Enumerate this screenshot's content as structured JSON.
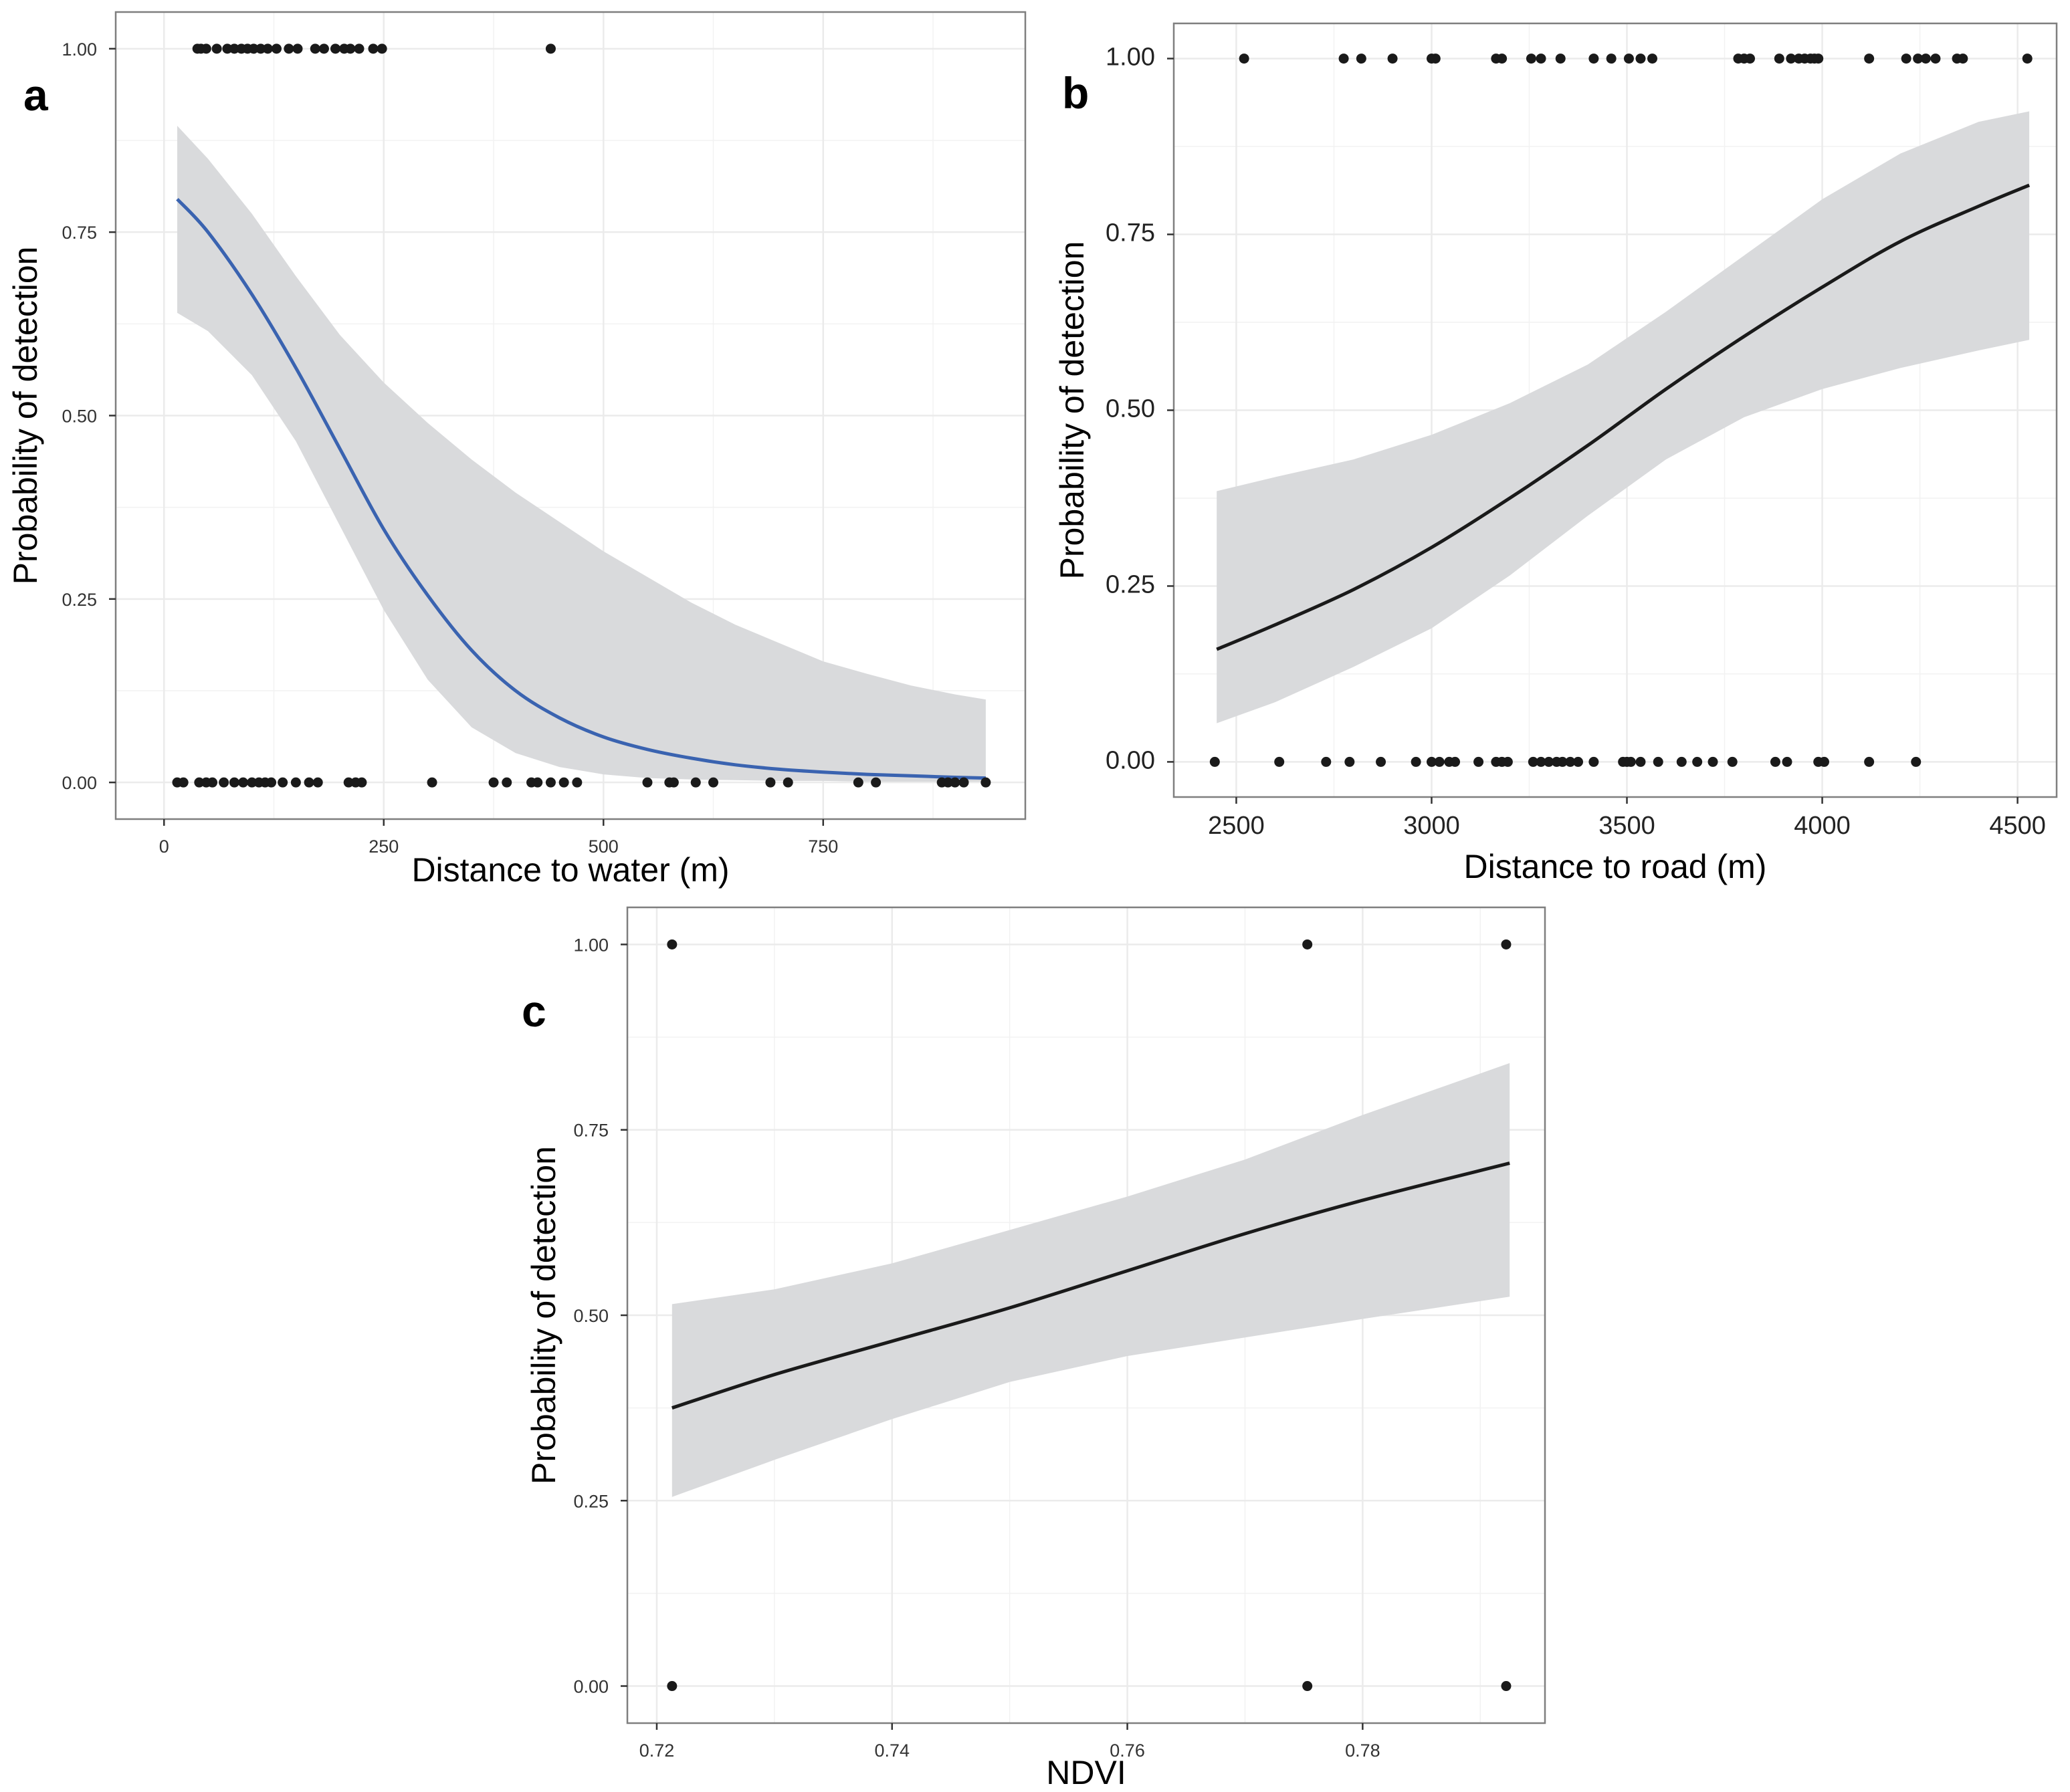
{
  "figure": {
    "colors": {
      "ribbon": "#d9dadc",
      "line_a": "#3a63b0",
      "line_bc": "#1a1a1a",
      "point": "#1a1a1a",
      "grid": "#ebebeb",
      "border": "#7f7f7f"
    }
  },
  "chart_data": [
    {
      "panel_letter": "a",
      "type": "line",
      "title": "",
      "xlabel": "Distance to water (m)",
      "ylabel": "Probability of detection",
      "xlim": [
        -55,
        980
      ],
      "ylim": [
        -0.05,
        1.05
      ],
      "xticks": [
        0,
        250,
        500,
        750
      ],
      "xtick_labels": [
        "0",
        "250",
        "500",
        "750"
      ],
      "yticks": [
        0,
        0.25,
        0.5,
        0.75,
        1
      ],
      "ytick_labels": [
        "0.00",
        "0.25",
        "0.50",
        "0.75",
        "1.00"
      ],
      "fit": {
        "x": [
          15,
          50,
          100,
          150,
          200,
          250,
          300,
          350,
          400,
          450,
          500,
          550,
          600,
          650,
          700,
          750,
          800,
          850,
          900,
          935
        ],
        "y": [
          0.795,
          0.75,
          0.665,
          0.565,
          0.455,
          0.345,
          0.255,
          0.18,
          0.125,
          0.088,
          0.062,
          0.045,
          0.033,
          0.024,
          0.018,
          0.014,
          0.011,
          0.009,
          0.007,
          0.006
        ],
        "lower": [
          0.64,
          0.615,
          0.555,
          0.465,
          0.35,
          0.235,
          0.14,
          0.075,
          0.04,
          0.021,
          0.011,
          0.006,
          0.004,
          0.003,
          0.002,
          0.002,
          0.001,
          0.001,
          0.001,
          0.001
        ],
        "upper": [
          0.895,
          0.85,
          0.775,
          0.69,
          0.61,
          0.545,
          0.49,
          0.44,
          0.395,
          0.355,
          0.315,
          0.28,
          0.245,
          0.215,
          0.19,
          0.165,
          0.148,
          0.132,
          0.12,
          0.113
        ]
      },
      "points": {
        "detected_x": [
          38,
          42,
          48,
          60,
          72,
          80,
          88,
          95,
          102,
          110,
          118,
          128,
          142,
          152,
          172,
          182,
          195,
          205,
          212,
          222,
          238,
          248,
          440
        ],
        "not_detected_x": [
          15,
          22,
          40,
          48,
          55,
          68,
          80,
          90,
          100,
          108,
          115,
          122,
          135,
          150,
          165,
          175,
          210,
          218,
          225,
          305,
          375,
          390,
          418,
          425,
          440,
          455,
          470,
          550,
          575,
          580,
          605,
          625,
          690,
          710,
          790,
          810,
          885,
          892,
          900,
          910,
          935
        ]
      }
    },
    {
      "panel_letter": "b",
      "type": "line",
      "title": "",
      "xlabel": "Distance to road (m)",
      "ylabel": "Probability of detection",
      "xlim": [
        2340,
        4600
      ],
      "ylim": [
        -0.05,
        1.05
      ],
      "xticks": [
        2500,
        3000,
        3500,
        4000,
        4500
      ],
      "xtick_labels": [
        "2500",
        "3000",
        "3500",
        "4000",
        "4500"
      ],
      "yticks": [
        0,
        0.25,
        0.5,
        0.75,
        1
      ],
      "ytick_labels": [
        "0.00",
        "0.25",
        "0.50",
        "0.75",
        "1.00"
      ],
      "fit": {
        "x": [
          2450,
          2600,
          2800,
          3000,
          3200,
          3400,
          3600,
          3800,
          4000,
          4200,
          4400,
          4530
        ],
        "y": [
          0.16,
          0.195,
          0.245,
          0.305,
          0.375,
          0.45,
          0.53,
          0.605,
          0.675,
          0.74,
          0.79,
          0.82
        ],
        "lower": [
          0.055,
          0.085,
          0.135,
          0.19,
          0.265,
          0.35,
          0.43,
          0.49,
          0.53,
          0.56,
          0.585,
          0.6
        ],
        "upper": [
          0.385,
          0.405,
          0.43,
          0.465,
          0.51,
          0.565,
          0.64,
          0.72,
          0.8,
          0.865,
          0.91,
          0.925
        ]
      },
      "points": {
        "detected_x": [
          2520,
          2775,
          2820,
          2900,
          3000,
          3010,
          3165,
          3180,
          3255,
          3280,
          3330,
          3415,
          3460,
          3505,
          3535,
          3565,
          3785,
          3800,
          3815,
          3890,
          3920,
          3940,
          3955,
          3970,
          3980,
          3990,
          4120,
          4215,
          4245,
          4265,
          4290,
          4345,
          4360,
          4525
        ],
        "not_detected_x": [
          2445,
          2610,
          2730,
          2790,
          2870,
          2960,
          3000,
          3020,
          3045,
          3060,
          3120,
          3165,
          3180,
          3195,
          3260,
          3280,
          3300,
          3320,
          3335,
          3355,
          3375,
          3415,
          3490,
          3500,
          3510,
          3535,
          3580,
          3640,
          3680,
          3720,
          3770,
          3880,
          3910,
          3990,
          4005,
          4120,
          4240
        ]
      }
    },
    {
      "panel_letter": "c",
      "type": "line",
      "title": "",
      "xlabel": "NDVI",
      "ylabel": "Probability of detection",
      "xlim": [
        0.7175,
        0.7955
      ],
      "ylim": [
        -0.05,
        1.05
      ],
      "xticks": [
        0.72,
        0.74,
        0.76,
        0.78
      ],
      "xtick_labels": [
        "0.72",
        "0.74",
        "0.76",
        "0.78"
      ],
      "yticks": [
        0,
        0.25,
        0.5,
        0.75,
        1
      ],
      "ytick_labels": [
        "0.00",
        "0.25",
        "0.50",
        "0.75",
        "1.00"
      ],
      "fit": {
        "x": [
          0.7213,
          0.73,
          0.74,
          0.75,
          0.76,
          0.77,
          0.78,
          0.7925
        ],
        "y": [
          0.375,
          0.42,
          0.465,
          0.51,
          0.56,
          0.61,
          0.655,
          0.705
        ],
        "lower": [
          0.255,
          0.305,
          0.36,
          0.41,
          0.445,
          0.47,
          0.495,
          0.525
        ],
        "upper": [
          0.515,
          0.535,
          0.57,
          0.615,
          0.66,
          0.71,
          0.77,
          0.84
        ]
      },
      "points": {
        "detected_x": [
          0.7213,
          0.7753,
          0.7922
        ],
        "not_detected_x": [
          0.7213,
          0.7753,
          0.7922
        ]
      }
    }
  ]
}
